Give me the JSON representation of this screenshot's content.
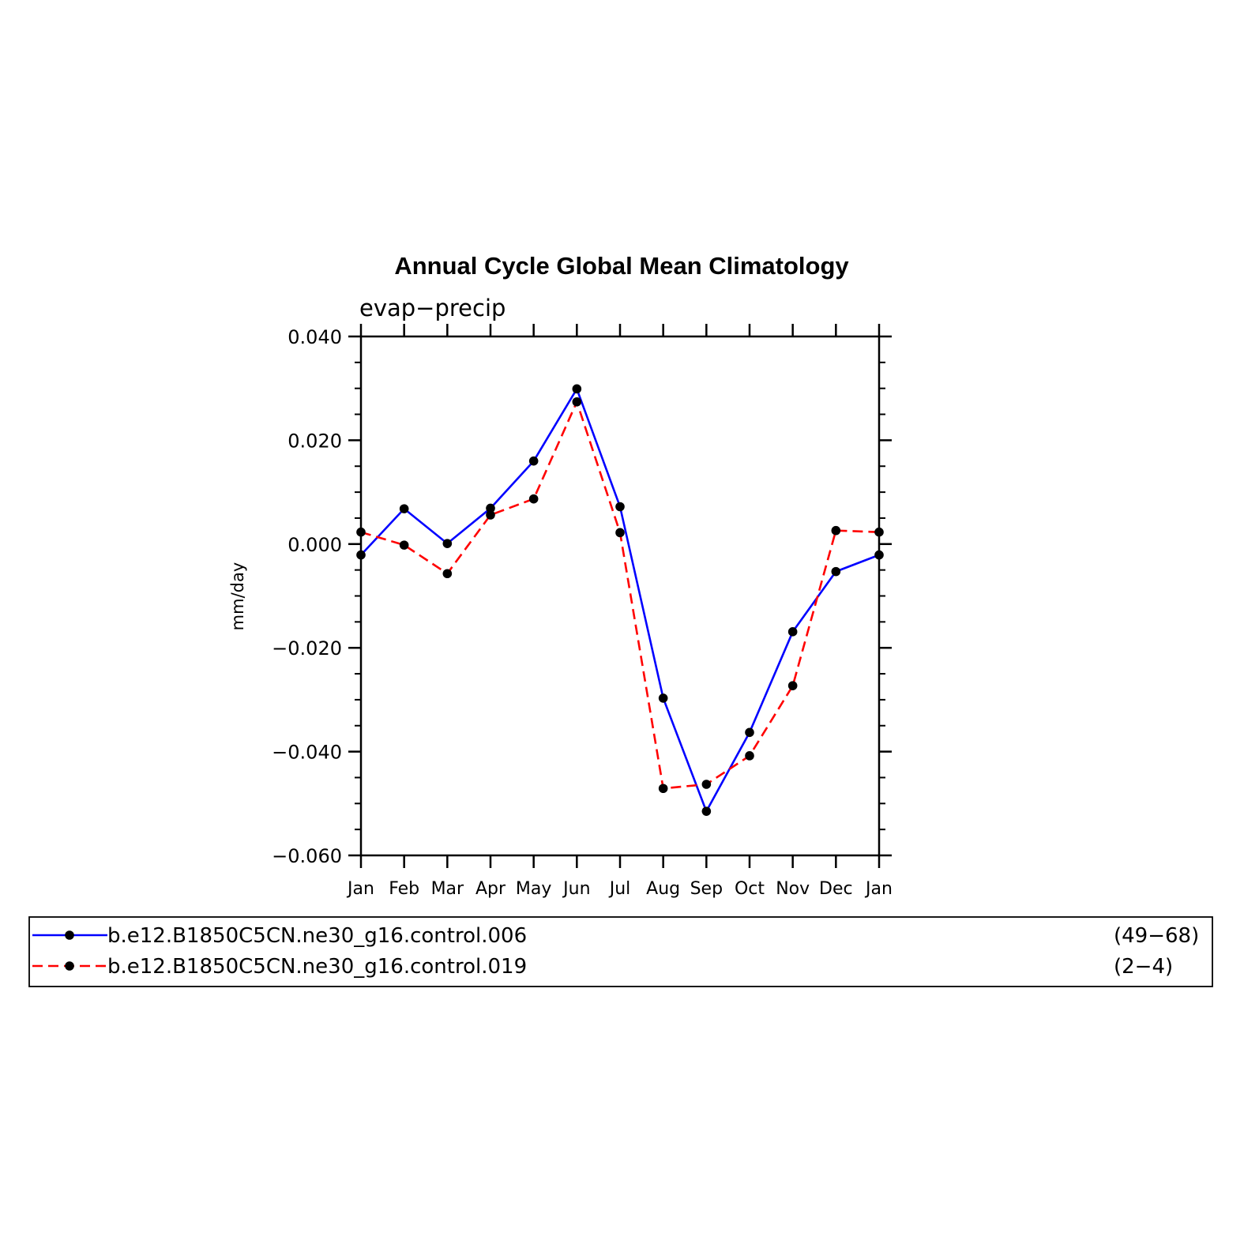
{
  "chart_data": {
    "type": "line",
    "title": "Annual Cycle Global Mean Climatology",
    "subtitle": "evap−precip",
    "ylabel": "mm/day",
    "xlabel": "",
    "categories": [
      "Jan",
      "Feb",
      "Mar",
      "Apr",
      "May",
      "Jun",
      "Jul",
      "Aug",
      "Sep",
      "Oct",
      "Nov",
      "Dec",
      "Jan"
    ],
    "ylim": [
      -0.06,
      0.04
    ],
    "yticks": [
      0.04,
      0.02,
      0.0,
      -0.02,
      -0.04,
      -0.06
    ],
    "ytick_labels": [
      "0.040",
      "0.020",
      "0.000",
      "−0.020",
      "−0.040",
      "−0.060"
    ],
    "grid": false,
    "legend_position": "bottom",
    "series": [
      {
        "name": "b.e12.B1850C5CN.ne30_g16.control.006",
        "years": "(49−68)",
        "color": "#0000ff",
        "line_style": "solid",
        "marker": "filled-circle",
        "values": [
          -0.0021,
          0.0068,
          0.0001,
          0.0069,
          0.016,
          0.0299,
          0.0072,
          -0.0297,
          -0.0515,
          -0.0363,
          -0.0169,
          -0.0053,
          -0.0021
        ]
      },
      {
        "name": "b.e12.B1850C5CN.ne30_g16.control.019",
        "years": "(2−4)",
        "color": "#ff0000",
        "line_style": "dashed",
        "marker": "filled-circle",
        "values": [
          0.0023,
          -0.0002,
          -0.0057,
          0.0056,
          0.0087,
          0.0274,
          0.0022,
          -0.0471,
          -0.0463,
          -0.0408,
          -0.0273,
          0.0026,
          0.0023
        ]
      }
    ]
  }
}
